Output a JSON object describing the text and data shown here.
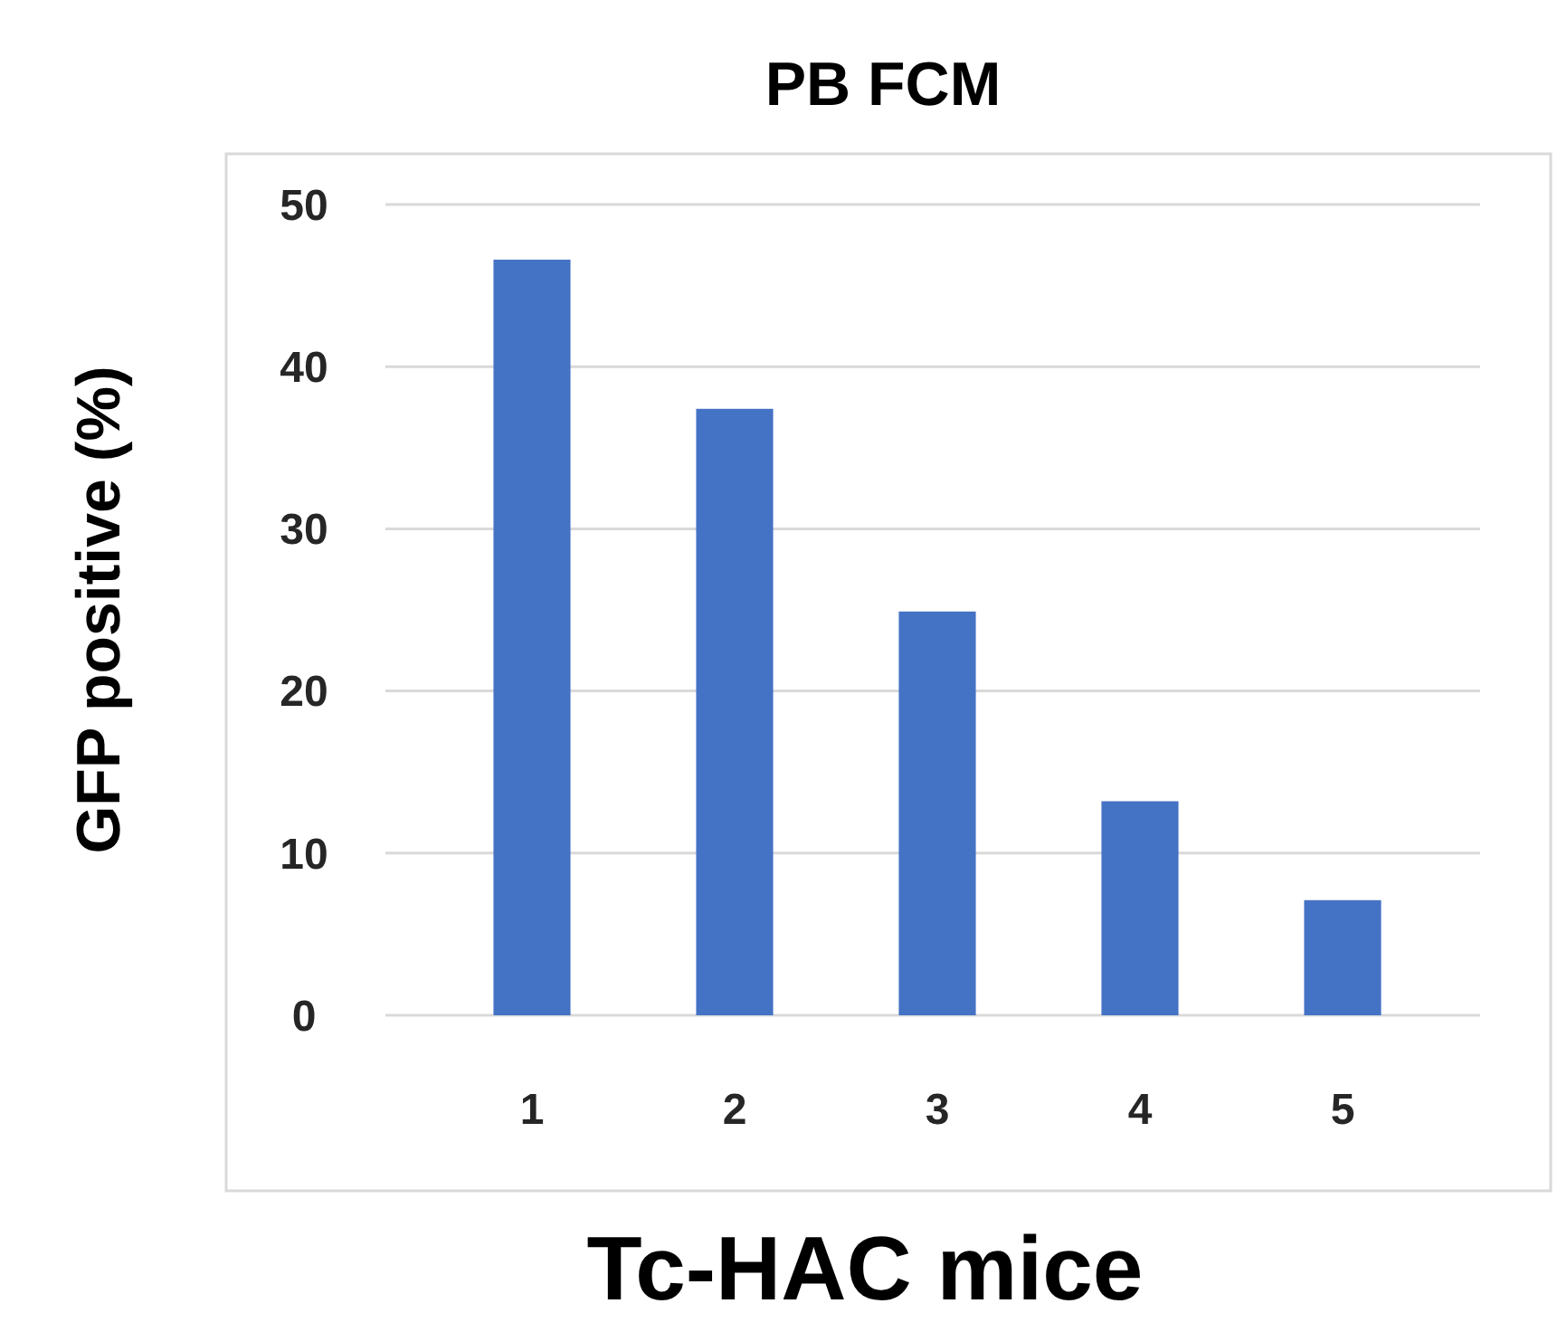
{
  "chart_data": {
    "type": "bar",
    "title": "PB FCM",
    "xlabel": "Tc-HAC mice",
    "ylabel": "GFP positive (%)",
    "categories": [
      "1",
      "2",
      "3",
      "4",
      "5"
    ],
    "values": [
      46.6,
      37.4,
      24.9,
      13.2,
      7.1
    ],
    "color": "#4472c4",
    "ylim": [
      0,
      50
    ],
    "yticks": [
      0,
      10,
      20,
      30,
      40,
      50
    ],
    "grid": true
  }
}
